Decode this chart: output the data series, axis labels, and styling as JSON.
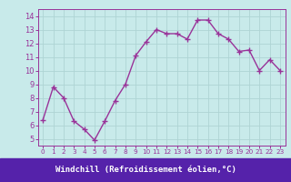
{
  "x": [
    0,
    1,
    2,
    3,
    4,
    5,
    6,
    7,
    8,
    9,
    10,
    11,
    12,
    13,
    14,
    15,
    16,
    17,
    18,
    19,
    20,
    21,
    22,
    23
  ],
  "y": [
    6.4,
    8.8,
    8.0,
    6.3,
    5.7,
    4.9,
    6.3,
    7.8,
    9.0,
    11.1,
    12.1,
    13.0,
    12.7,
    12.7,
    12.3,
    13.7,
    13.7,
    12.7,
    12.3,
    11.4,
    11.5,
    10.0,
    10.8,
    10.0
  ],
  "line_color": "#993399",
  "marker": "+",
  "background_color": "#c8eaea",
  "grid_color": "#aed4d4",
  "xlabel": "Windchill (Refroidissement éolien,°C)",
  "xlabel_bg": "#5522aa",
  "ylim": [
    4.5,
    14.5
  ],
  "xlim": [
    -0.5,
    23.5
  ],
  "yticks": [
    5,
    6,
    7,
    8,
    9,
    10,
    11,
    12,
    13,
    14
  ],
  "xticks": [
    0,
    1,
    2,
    3,
    4,
    5,
    6,
    7,
    8,
    9,
    10,
    11,
    12,
    13,
    14,
    15,
    16,
    17,
    18,
    19,
    20,
    21,
    22,
    23
  ],
  "tick_color": "#993399",
  "axis_bg": "#c8eaea",
  "tick_fontsize": 6.0,
  "xtick_fontsize": 5.2,
  "line_width": 1.0,
  "marker_size": 4
}
